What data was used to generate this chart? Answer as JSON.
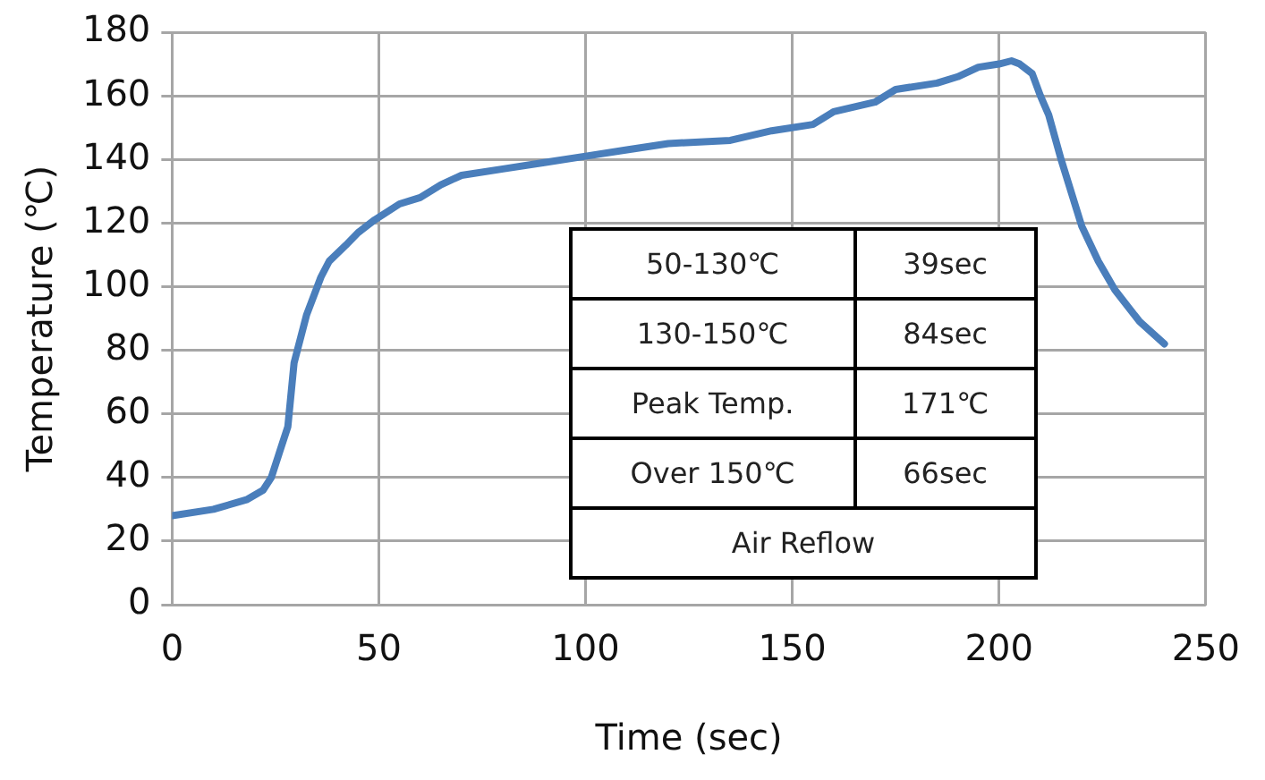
{
  "chart_data": {
    "type": "line",
    "xlabel": "Time (sec)",
    "ylabel": "Temperature (℃)",
    "xlim": [
      0,
      250
    ],
    "xticks": [
      0,
      50,
      100,
      150,
      200,
      250
    ],
    "ylim": [
      0,
      180
    ],
    "yticks": [
      0,
      20,
      40,
      60,
      80,
      100,
      120,
      140,
      160,
      180
    ],
    "grid": true,
    "legend": false,
    "marker": "none",
    "line_style": "solid",
    "series": [
      {
        "color": "#4a7ebb",
        "x": [
          0,
          10,
          18,
          22,
          24,
          26,
          28,
          29.5,
          32.5,
          36,
          38,
          42,
          45,
          49,
          55,
          60,
          65,
          70,
          80,
          90,
          100,
          110,
          120,
          135,
          145,
          155,
          160,
          170,
          175,
          185,
          190,
          195,
          200,
          203,
          205,
          208,
          210,
          212,
          215,
          220,
          224,
          228,
          234,
          240
        ],
        "values": [
          28,
          30,
          33,
          36,
          40,
          48,
          56,
          76,
          91,
          103,
          108,
          113,
          117,
          121,
          126,
          128,
          132,
          135,
          137,
          139,
          141,
          143,
          145,
          146,
          149,
          151,
          155,
          158,
          162,
          164,
          166,
          169,
          170,
          171,
          170,
          167,
          160,
          154,
          140,
          119,
          108,
          99,
          89,
          82
        ]
      }
    ],
    "annotations": [
      "50-130℃",
      "39sec",
      "130-150℃",
      "84sec",
      "Peak Temp.",
      "171℃",
      "Over 150℃",
      "66sec",
      "Air Reflow"
    ]
  }
}
